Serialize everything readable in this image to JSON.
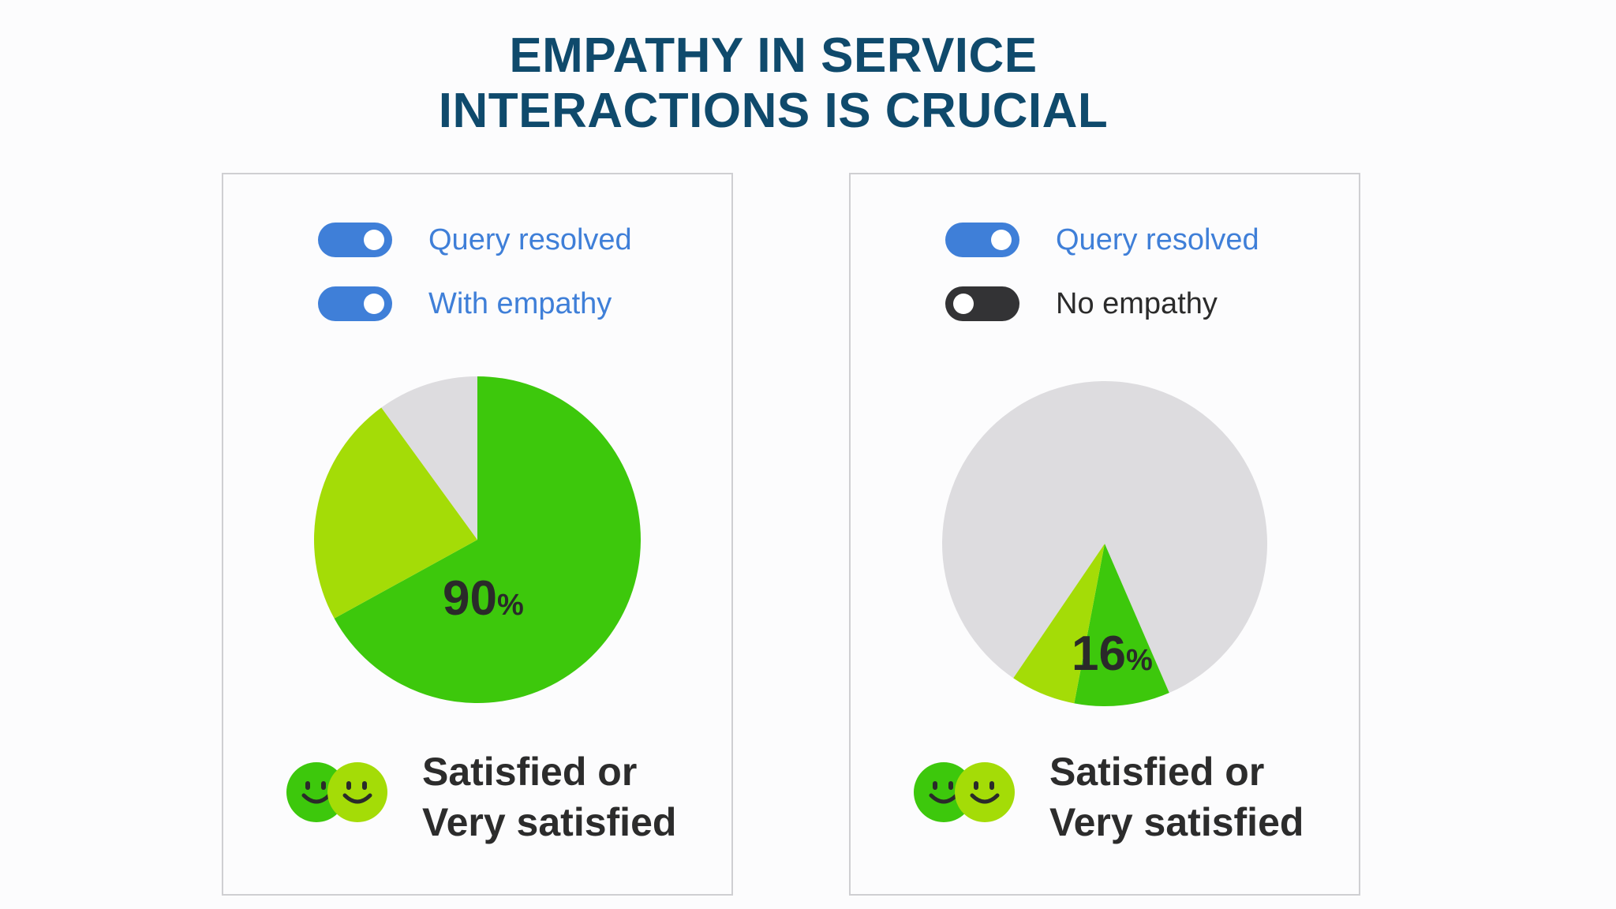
{
  "title": {
    "line1": "EMPATHY IN SERVICE",
    "line2": "INTERACTIONS IS CRUCIAL"
  },
  "colors": {
    "title": "#0f4a6c",
    "toggle_on": "#3f7fd8",
    "toggle_off": "#333335",
    "satisfied": "#3dc80c",
    "very_satisfied": "#a4dc07",
    "other": "#dddcdf"
  },
  "panels": [
    {
      "toggles": [
        {
          "label": "Query resolved",
          "state": "on"
        },
        {
          "label": "With empathy",
          "state": "on"
        }
      ],
      "percent_value": "90",
      "percent_symbol": "%",
      "label_line1": "Satisfied or",
      "label_line2": "Very satisfied"
    },
    {
      "toggles": [
        {
          "label": "Query resolved",
          "state": "on"
        },
        {
          "label": "No empathy",
          "state": "off"
        }
      ],
      "percent_value": "16",
      "percent_symbol": "%",
      "label_line1": "Satisfied or",
      "label_line2": "Very satisfied"
    }
  ],
  "chart_data": [
    {
      "type": "pie",
      "start_angle_deg": 0,
      "direction": "clockwise",
      "slices": [
        {
          "value": 0.67,
          "color": "#3dc80c"
        },
        {
          "value": 0.23,
          "color": "#a4dc07"
        },
        {
          "value": 0.1,
          "color": "#dddcdf"
        }
      ],
      "total_label": "90%"
    },
    {
      "type": "pie",
      "start_angle_deg": 0,
      "direction": "clockwise",
      "slices": [
        {
          "value": 0.095,
          "color": "#3dc80c"
        },
        {
          "value": 0.065,
          "color": "#a4dc07"
        },
        {
          "value": 0.84,
          "color": "#dddcdf"
        }
      ],
      "total_label": "16%"
    }
  ]
}
